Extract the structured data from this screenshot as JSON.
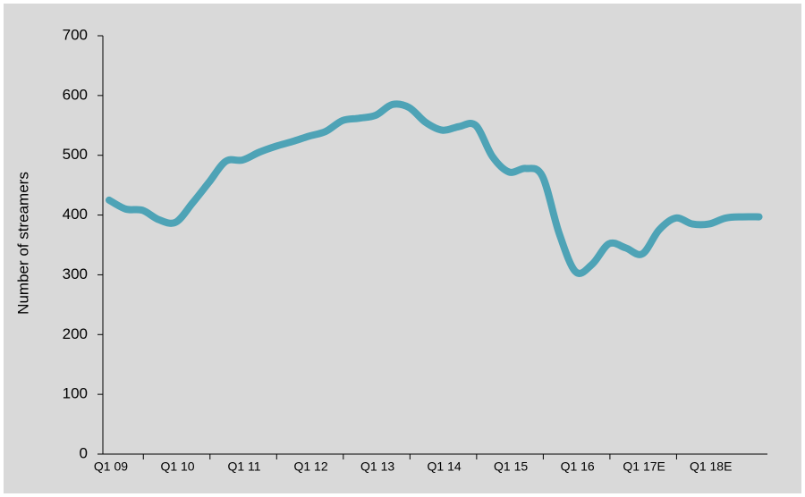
{
  "chart_data": {
    "type": "line",
    "ylabel": "Number of streamers",
    "categories": [
      "Q1 09",
      null,
      null,
      null,
      "Q1 10",
      null,
      null,
      null,
      "Q1 11",
      null,
      null,
      null,
      "Q1 12",
      null,
      null,
      null,
      "Q1 13",
      null,
      null,
      null,
      "Q1 14",
      null,
      null,
      null,
      "Q1 15",
      null,
      null,
      null,
      "Q1 16",
      null,
      null,
      null,
      "Q1 17E",
      null,
      null,
      null,
      "Q1 18E",
      null,
      null,
      null
    ],
    "series": [
      {
        "name": "Number of streamers",
        "color": "#4ea3b6",
        "values": [
          425,
          410,
          408,
          392,
          388,
          420,
          455,
          490,
          492,
          505,
          515,
          523,
          532,
          540,
          558,
          562,
          567,
          585,
          580,
          555,
          542,
          548,
          550,
          498,
          472,
          478,
          465,
          370,
          305,
          318,
          352,
          345,
          335,
          375,
          395,
          385,
          385,
          395,
          397,
          397
        ]
      }
    ],
    "ylim": [
      0,
      700
    ],
    "yticks": [
      0,
      100,
      200,
      300,
      400,
      500,
      600,
      700
    ],
    "grid": false
  }
}
